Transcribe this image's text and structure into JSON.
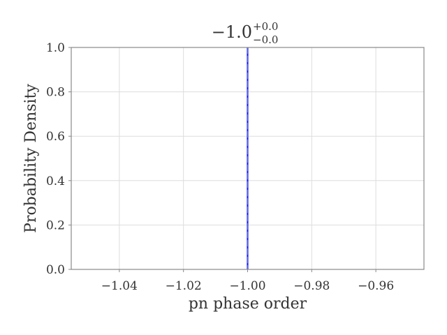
{
  "chart_data": {
    "type": "line",
    "title": {
      "main": "−1.0",
      "superscript": "+0.0",
      "subscript": "−0.0"
    },
    "xlabel": "pn phase order",
    "ylabel": "Probability Density",
    "xlim": [
      -1.055,
      -0.945
    ],
    "ylim": [
      0.0,
      1.0
    ],
    "xticks": [
      {
        "value": -1.04,
        "label": "−1.04"
      },
      {
        "value": -1.02,
        "label": "−1.02"
      },
      {
        "value": -1.0,
        "label": "−1.00"
      },
      {
        "value": -0.98,
        "label": "−0.98"
      },
      {
        "value": -0.96,
        "label": "−0.96"
      }
    ],
    "yticks": [
      {
        "value": 0.0,
        "label": "0.0"
      },
      {
        "value": 0.2,
        "label": "0.2"
      },
      {
        "value": 0.4,
        "label": "0.4"
      },
      {
        "value": 0.6,
        "label": "0.6"
      },
      {
        "value": 0.8,
        "label": "0.8"
      },
      {
        "value": 1.0,
        "label": "1.0"
      }
    ],
    "grid": true,
    "vlines": [
      {
        "x": -1.0,
        "style": "solid",
        "color": "#1a1aff"
      },
      {
        "x": -1.0,
        "style": "dashed",
        "color": "#5a6bd9"
      }
    ]
  }
}
